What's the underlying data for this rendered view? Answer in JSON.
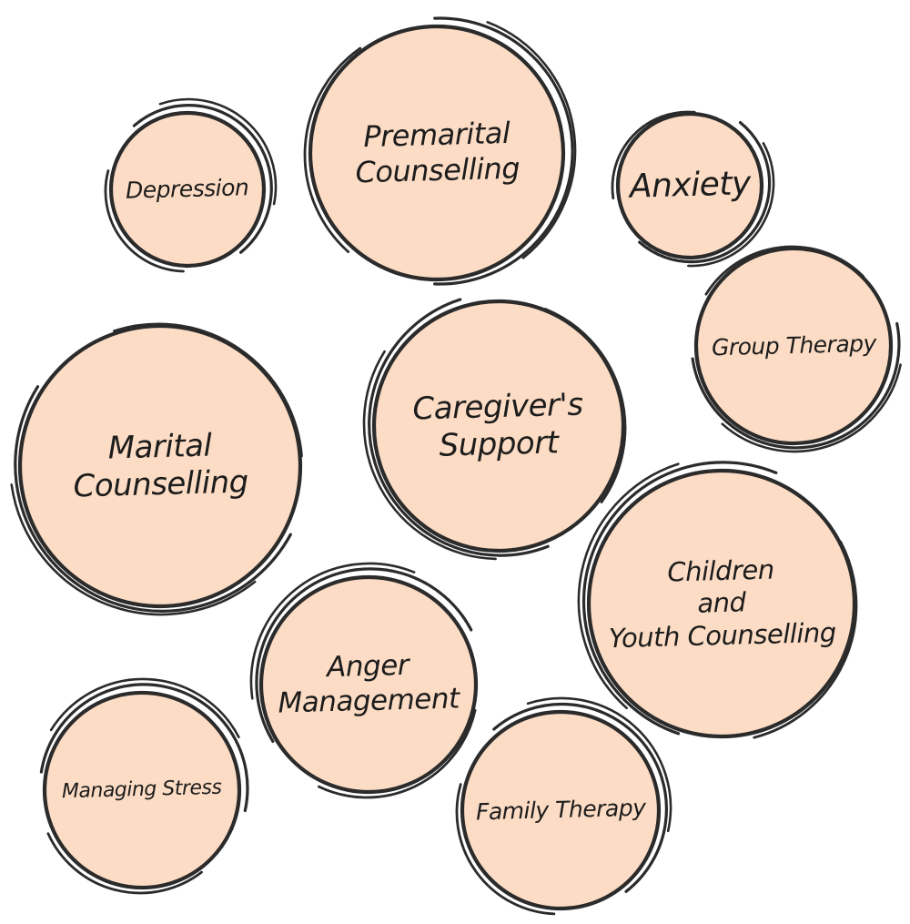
{
  "colors": {
    "fill": "#fcdcc4",
    "ink": "#2b2b2b"
  },
  "topics": [
    {
      "id": "depression",
      "label": "Depression"
    },
    {
      "id": "premarital",
      "label": "Premarital\nCounselling"
    },
    {
      "id": "anxiety",
      "label": "Anxiety"
    },
    {
      "id": "group-therapy",
      "label": "Group Therapy"
    },
    {
      "id": "marital",
      "label": "Marital\nCounselling"
    },
    {
      "id": "caregivers",
      "label": "Caregiver's\nSupport"
    },
    {
      "id": "children-youth",
      "label": "Children\nand\nYouth Counselling"
    },
    {
      "id": "anger",
      "label": "Anger\nManagement"
    },
    {
      "id": "stress",
      "label": "Managing Stress"
    },
    {
      "id": "family-therapy",
      "label": "Family Therapy"
    }
  ]
}
